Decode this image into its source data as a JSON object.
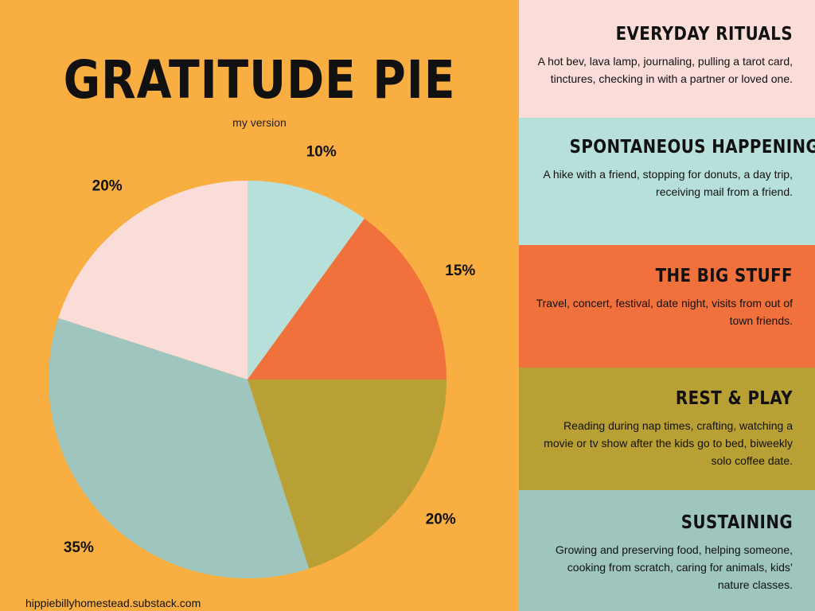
{
  "title": "GRATITUDE PIE",
  "subtitle": "my version",
  "credit": "hippiebillyhomestead.substack.com",
  "chart_data": {
    "type": "pie",
    "slices": [
      {
        "value": 10,
        "label": "10%",
        "color": "#B8E0DA"
      },
      {
        "value": 15,
        "label": "15%",
        "color": "#F1713D"
      },
      {
        "value": 20,
        "label": "20%",
        "color": "#B9A034"
      },
      {
        "value": 35,
        "label": "35%",
        "color": "#9EC6BE"
      },
      {
        "value": 20,
        "label": "20%",
        "color": "#FADCD8"
      }
    ]
  },
  "panels": [
    {
      "heading": "EVERYDAY RITUALS",
      "text": "A hot bev, lava lamp, journaling, pulling a tarot card, tinctures,  checking in with a partner or loved one.",
      "color": "#FADCD8"
    },
    {
      "heading": "SPONTANEOUS HAPPENINGS",
      "text": "A hike with a friend, stopping for donuts, a day trip, receiving mail from a friend.",
      "color": "#B8E0DA"
    },
    {
      "heading": "THE BIG STUFF",
      "text": "Travel, concert, festival, date night, visits from out of town friends.",
      "color": "#F1713D"
    },
    {
      "heading": "REST & PLAY",
      "text": "Reading during nap times, crafting, watching a movie or tv show after the kids go to bed, biweekly solo coffee date.",
      "color": "#B9A034"
    },
    {
      "heading": "SUSTAINING",
      "text": "Growing and preserving food, helping someone, cooking from scratch, caring for animals, kids’ nature classes.",
      "color": "#9EC6BE"
    }
  ]
}
